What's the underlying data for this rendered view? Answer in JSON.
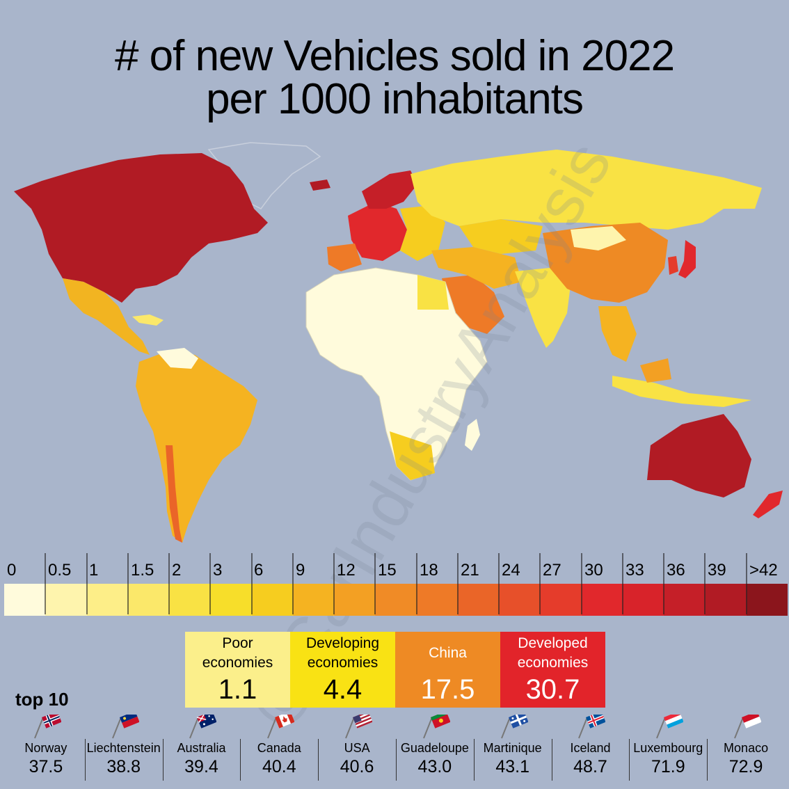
{
  "title": {
    "line1": "# of new Vehicles sold in 2022",
    "line2": "per 1000 inhabitants"
  },
  "watermark": "@CarIndustryAnalysis",
  "legend": {
    "labels": [
      "0",
      "0.5",
      "1",
      "1.5",
      "2",
      "3",
      "6",
      "9",
      "12",
      "15",
      "18",
      "21",
      "24",
      "27",
      "30",
      "33",
      "36",
      "39",
      ">42"
    ],
    "colors": [
      "#fffbdc",
      "#fef4ad",
      "#fdee88",
      "#fbe86a",
      "#f9e244",
      "#f7de2a",
      "#f6cd1f",
      "#f5b321",
      "#f3a023",
      "#f08b26",
      "#ee7a27",
      "#ea6528",
      "#e7502a",
      "#e53c2b",
      "#e1282c",
      "#d8232a",
      "#c51f28",
      "#b11b24",
      "#8b151c"
    ]
  },
  "groups": [
    {
      "label": "Poor economies",
      "value": "1.1",
      "color": "#fbef8b",
      "text_color": "#000000"
    },
    {
      "label": "Developing economies",
      "value": "4.4",
      "color": "#f9e214",
      "text_color": "#000000"
    },
    {
      "label": "China",
      "value": "17.5",
      "color": "#ee8a24",
      "text_color": "#ffffff"
    },
    {
      "label": "Developed economies",
      "value": "30.7",
      "color": "#e2242a",
      "text_color": "#ffffff"
    }
  ],
  "top10": {
    "title": "top 10",
    "items": [
      {
        "country": "Norway",
        "value": "37.5",
        "flag": "norway-flag"
      },
      {
        "country": "Liechtenstein",
        "value": "38.8",
        "flag": "liechtenstein-flag"
      },
      {
        "country": "Australia",
        "value": "39.4",
        "flag": "australia-flag"
      },
      {
        "country": "Canada",
        "value": "40.4",
        "flag": "canada-flag"
      },
      {
        "country": "USA",
        "value": "40.6",
        "flag": "usa-flag"
      },
      {
        "country": "Guadeloupe",
        "value": "43.0",
        "flag": "guadeloupe-flag"
      },
      {
        "country": "Martinique",
        "value": "43.1",
        "flag": "martinique-flag"
      },
      {
        "country": "Iceland",
        "value": "48.7",
        "flag": "iceland-flag"
      },
      {
        "country": "Luxembourg",
        "value": "71.9",
        "flag": "luxembourg-flag"
      },
      {
        "country": "Monaco",
        "value": "72.9",
        "flag": "monaco-flag"
      }
    ]
  }
}
